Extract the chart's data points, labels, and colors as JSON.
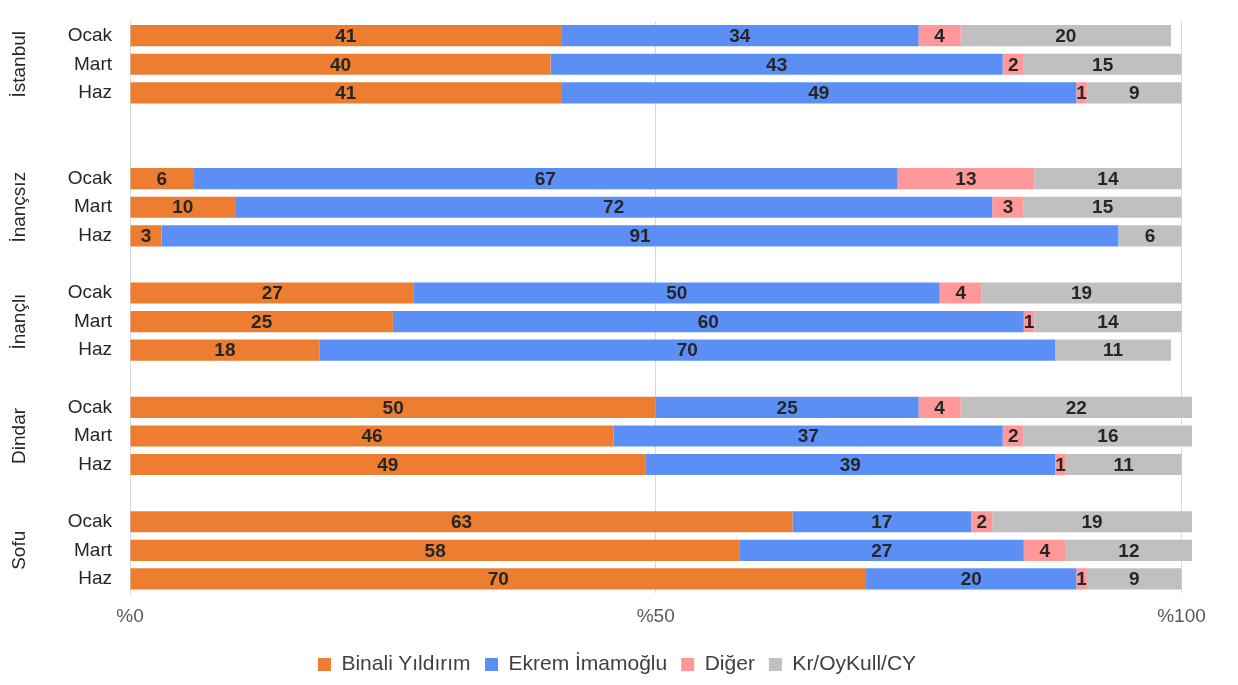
{
  "chart_data": {
    "type": "bar",
    "orientation": "horizontal",
    "stacked": true,
    "data_labels": true,
    "grid": "x",
    "legend": "bottom",
    "categories": [
      "Ocak",
      "Mart",
      "Haz",
      null,
      null,
      "Ocak",
      "Mart",
      "Haz",
      null,
      "Ocak",
      "Mart",
      "Haz",
      null,
      "Ocak",
      "Mart",
      "Haz",
      null,
      "Ocak",
      "Mart",
      "Haz"
    ],
    "annotations": [
      "İstanbul",
      "İnançsız",
      "İnançlı",
      "Dindar",
      "Sofu"
    ],
    "xlim": [
      0,
      101
    ],
    "xticks": [
      {
        "value": 0,
        "label": "%0"
      },
      {
        "value": 50,
        "label": "%50"
      },
      {
        "value": 100,
        "label": "%100"
      }
    ],
    "series": [
      {
        "name": "Binali Yıldırım",
        "color": "#ed7d31",
        "values": [
          41,
          40,
          41,
          null,
          null,
          6,
          10,
          3,
          null,
          27,
          25,
          18,
          null,
          50,
          46,
          49,
          null,
          63,
          58,
          70
        ]
      },
      {
        "name": "Ekrem İmamoğlu",
        "color": "#5b8ff5",
        "values": [
          34,
          43,
          49,
          null,
          null,
          67,
          72,
          91,
          null,
          50,
          60,
          70,
          null,
          25,
          37,
          39,
          null,
          17,
          27,
          20
        ]
      },
      {
        "name": "Diğer",
        "color": "#ff9999",
        "values": [
          4,
          2,
          1,
          null,
          null,
          13,
          3,
          null,
          null,
          4,
          1,
          null,
          null,
          4,
          2,
          1,
          null,
          2,
          4,
          1
        ]
      },
      {
        "name": "Kr/OyKull/CY",
        "color": "#c0c0c0",
        "values": [
          20,
          15,
          9,
          null,
          null,
          14,
          15,
          6,
          null,
          19,
          14,
          11,
          null,
          22,
          16,
          11,
          null,
          19,
          12,
          9
        ]
      }
    ]
  }
}
